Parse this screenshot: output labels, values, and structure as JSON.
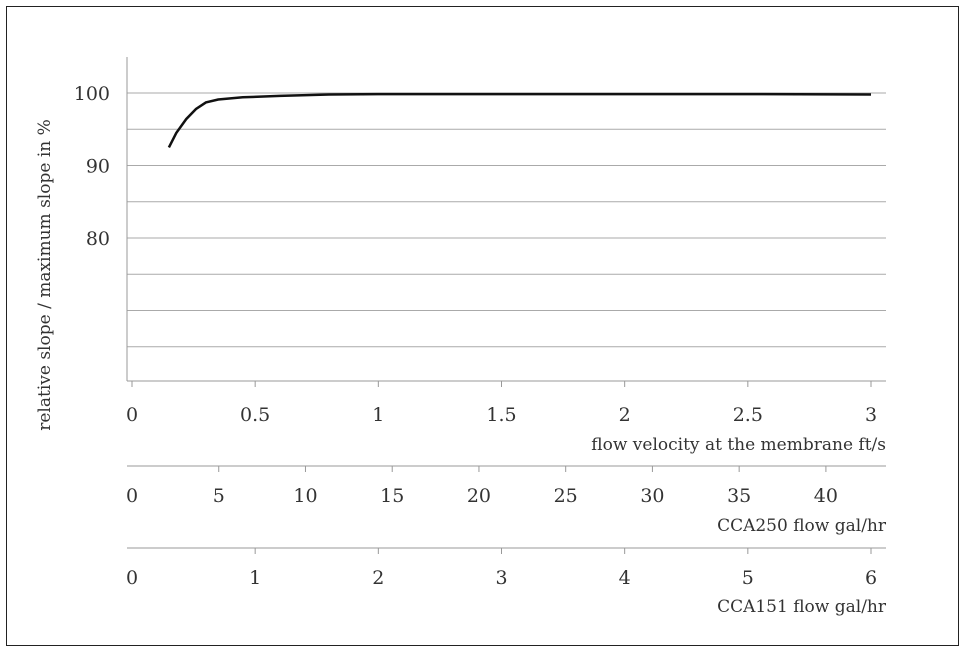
{
  "chart_data": {
    "type": "line",
    "ylabel": "relative slope / maximum slope in %",
    "ylim": [
      60,
      105
    ],
    "yticks": [
      80,
      90,
      100
    ],
    "grid": true,
    "primary_x": {
      "label": "flow velocity at the membrane ft/s",
      "range": [
        0,
        3
      ],
      "ticks": [
        "0",
        "0.5",
        "1",
        "1.5",
        "2",
        "2.5",
        "3"
      ],
      "tick_values": [
        0,
        0.5,
        1,
        1.5,
        2,
        2.5,
        3
      ]
    },
    "secondary_axes": [
      {
        "label": "CCA250 flow gal/hr",
        "ticks": [
          "0",
          "5",
          "10",
          "15",
          "20",
          "25",
          "30",
          "35",
          "40"
        ],
        "tick_values": [
          0,
          5,
          10,
          15,
          20,
          25,
          30,
          35,
          40
        ],
        "units_per_ftps": 14.2
      },
      {
        "label": "CCA151 flow gal/hr",
        "ticks": [
          "0",
          "1",
          "2",
          "3",
          "4",
          "5",
          "6"
        ],
        "tick_values": [
          0,
          1,
          2,
          3,
          4,
          5,
          6
        ],
        "units_per_ftps": 2.0
      }
    ],
    "series": [
      {
        "x": [
          0.15,
          0.18,
          0.22,
          0.26,
          0.3,
          0.35,
          0.45,
          0.6,
          0.8,
          1.0,
          1.5,
          2.0,
          2.5,
          3.0
        ],
        "y": [
          92.5,
          94.5,
          96.4,
          97.8,
          98.7,
          99.1,
          99.4,
          99.6,
          99.8,
          99.85,
          99.85,
          99.85,
          99.85,
          99.8
        ]
      }
    ]
  }
}
